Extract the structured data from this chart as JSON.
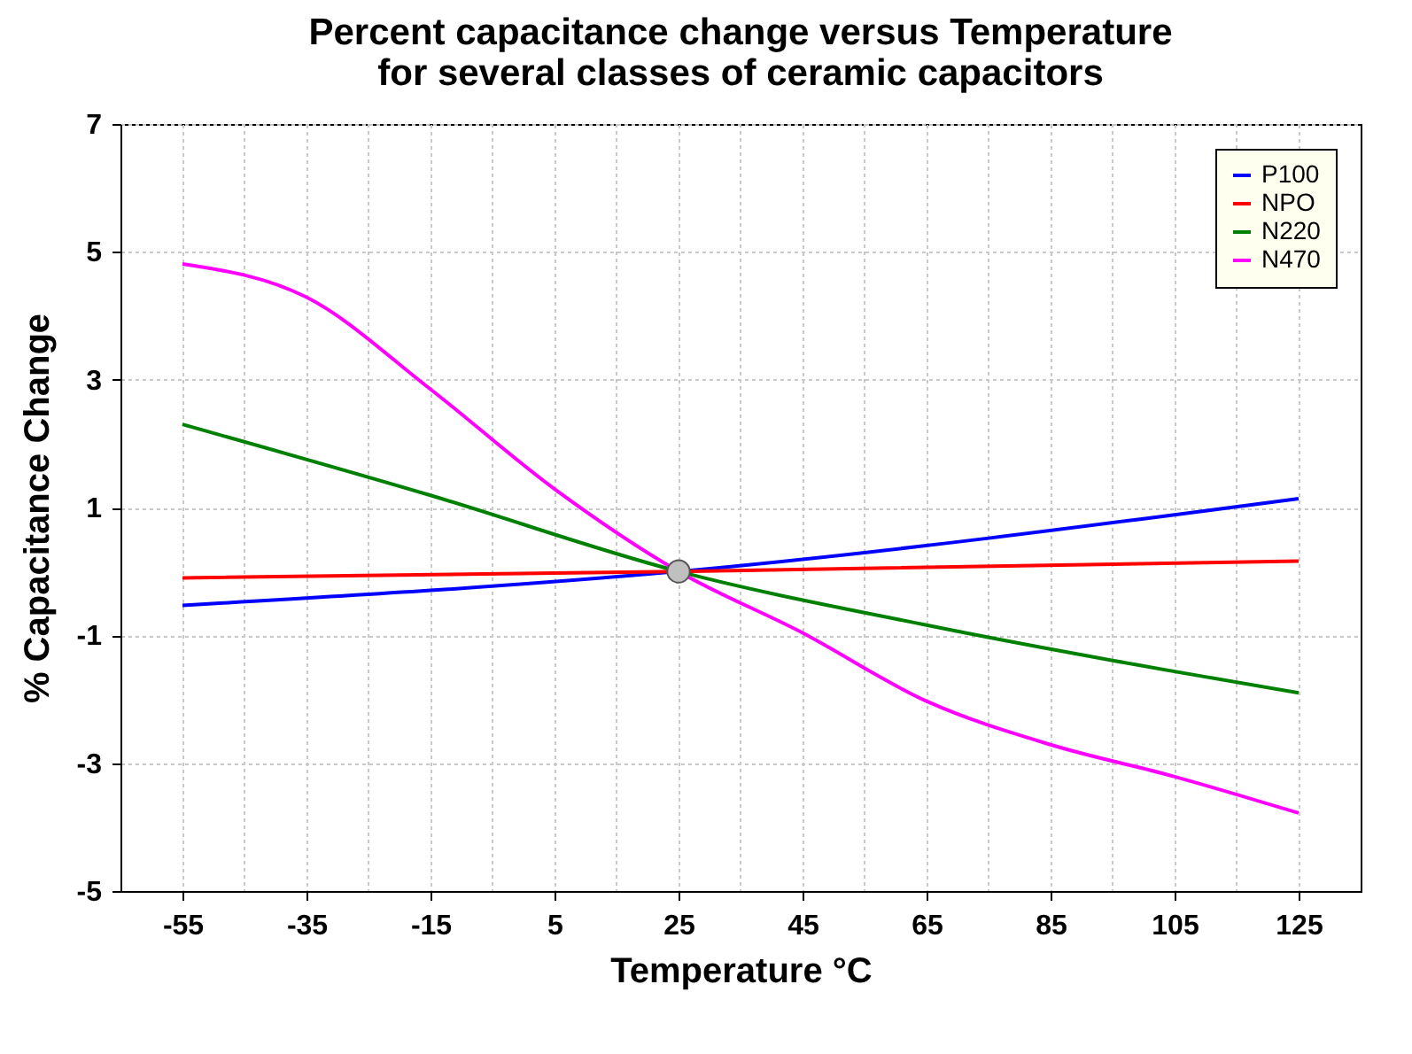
{
  "chart_data": {
    "type": "line",
    "title": "Percent capacitance change versus Temperature\nfor several classes of ceramic capacitors",
    "xlabel": "Temperature °C",
    "ylabel": "% Capacitance Change",
    "xlim": [
      -65,
      135
    ],
    "ylim": [
      -5,
      7
    ],
    "xticks": [
      -55,
      {
        "value": -45,
        "label": null
      },
      -35,
      {
        "value": -25,
        "label": null
      },
      -15,
      {
        "value": -5,
        "label": null
      },
      5,
      {
        "value": 15,
        "label": null
      },
      25,
      {
        "value": 35,
        "label": null
      },
      45,
      {
        "value": 55,
        "label": null
      },
      65,
      {
        "value": 75,
        "label": null
      },
      85,
      {
        "value": 95,
        "label": null
      },
      105,
      {
        "value": 115,
        "label": null
      },
      125
    ],
    "yticks": [
      -5,
      -3,
      -1,
      1,
      3,
      5,
      7
    ],
    "grid": true,
    "legend": "top right",
    "line_style": "solid",
    "marker": "none",
    "series": [
      {
        "name": "P100",
        "color": "#0000ff",
        "x": [
          -55,
          25,
          125
        ],
        "values": [
          -0.53,
          0,
          1.14
        ]
      },
      {
        "name": "NPO",
        "color": "#ff0000",
        "x": [
          -55,
          25,
          125
        ],
        "values": [
          -0.1,
          0,
          0.16
        ]
      },
      {
        "name": "N220",
        "color": "#008000",
        "x": [
          -55,
          -15,
          25,
          65,
          125
        ],
        "values": [
          2.3,
          1.19,
          0,
          -0.84,
          -1.9
        ]
      },
      {
        "name": "N470",
        "color": "#ff00ff",
        "x": [
          -55,
          -35,
          -15,
          5,
          25,
          45,
          65,
          85,
          105,
          125
        ],
        "values": [
          4.81,
          4.29,
          2.85,
          1.29,
          0,
          -0.96,
          -2.03,
          -2.71,
          -3.21,
          -3.78
        ]
      },
      {
        "type": "scatter",
        "marker": "circle",
        "color": "#c0c0c0",
        "x": [
          25
        ],
        "values": [
          0
        ]
      }
    ]
  }
}
